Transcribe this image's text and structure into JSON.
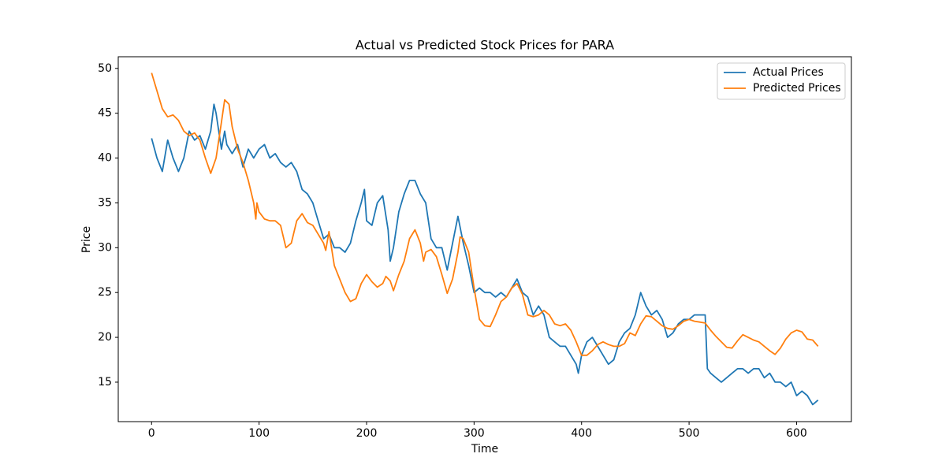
{
  "chart_data": {
    "type": "line",
    "title": "Actual vs Predicted Stock Prices for PARA",
    "x_label": "Time",
    "y_label": "Price",
    "xlim": [
      -31,
      651
    ],
    "ylim": [
      10.6,
      51.3
    ],
    "xticks": [
      0,
      100,
      200,
      300,
      400,
      500,
      600
    ],
    "yticks": [
      15,
      20,
      25,
      30,
      35,
      40,
      45,
      50
    ],
    "legend": "upper right",
    "series": [
      {
        "name": "Actual Prices",
        "color": "#1f77b4",
        "x": [
          0,
          5,
          10,
          15,
          20,
          25,
          30,
          35,
          40,
          45,
          50,
          55,
          58,
          60,
          65,
          68,
          70,
          75,
          80,
          85,
          90,
          95,
          100,
          105,
          110,
          115,
          120,
          125,
          130,
          135,
          140,
          145,
          150,
          155,
          160,
          165,
          170,
          175,
          180,
          185,
          190,
          195,
          198,
          200,
          205,
          210,
          215,
          220,
          222,
          225,
          230,
          235,
          240,
          245,
          250,
          255,
          260,
          265,
          270,
          275,
          280,
          285,
          290,
          295,
          300,
          305,
          310,
          315,
          320,
          325,
          330,
          335,
          340,
          345,
          350,
          355,
          360,
          365,
          370,
          375,
          380,
          385,
          390,
          395,
          397,
          400,
          405,
          410,
          415,
          420,
          425,
          430,
          435,
          440,
          445,
          450,
          455,
          460,
          465,
          470,
          475,
          480,
          485,
          490,
          495,
          500,
          505,
          510,
          515,
          517,
          520,
          525,
          530,
          535,
          540,
          545,
          550,
          555,
          560,
          565,
          570,
          575,
          580,
          585,
          590,
          595,
          600,
          605,
          610,
          615,
          620
        ],
        "values": [
          42.2,
          40,
          38.5,
          42,
          40,
          38.5,
          40,
          43,
          42,
          42.5,
          41,
          43,
          46,
          45,
          41,
          43,
          41.5,
          40.5,
          41.5,
          39,
          41,
          40,
          41,
          41.5,
          40,
          40.5,
          39.5,
          39,
          39.5,
          38.5,
          36.5,
          36,
          35,
          33,
          31,
          31.5,
          30,
          30,
          29.5,
          30.5,
          33,
          35,
          36.5,
          33,
          32.5,
          35,
          35.8,
          32,
          28.5,
          30,
          34,
          36,
          37.5,
          37.5,
          36,
          35,
          31,
          30,
          30,
          27.5,
          30.5,
          33.5,
          30.5,
          28,
          25,
          25.5,
          25,
          25,
          24.5,
          25,
          24.5,
          25.5,
          26.5,
          25,
          24.5,
          22.5,
          23.5,
          22.5,
          20,
          19.5,
          19,
          19,
          18,
          17,
          16,
          18,
          19.5,
          20,
          19,
          18,
          17,
          17.5,
          19.5,
          20.5,
          21,
          22.5,
          25,
          23.5,
          22.5,
          23,
          22,
          20,
          20.5,
          21.5,
          22,
          22,
          22.5,
          22.5,
          22.5,
          16.5,
          16,
          15.5,
          15,
          15.5,
          16,
          16.5,
          16.5,
          16,
          16.5,
          16.5,
          15.5,
          16,
          15,
          15,
          14.5,
          15,
          13.5,
          14,
          13.5,
          12.5,
          13
        ]
      },
      {
        "name": "Predicted Prices",
        "color": "#ff7f0e",
        "x": [
          0,
          5,
          10,
          15,
          20,
          25,
          30,
          35,
          40,
          45,
          50,
          55,
          60,
          65,
          68,
          72,
          75,
          80,
          85,
          90,
          95,
          97,
          98,
          100,
          105,
          110,
          115,
          120,
          125,
          130,
          135,
          140,
          145,
          150,
          155,
          160,
          162,
          165,
          168,
          170,
          175,
          180,
          185,
          190,
          195,
          200,
          205,
          210,
          215,
          218,
          222,
          225,
          230,
          235,
          240,
          245,
          250,
          253,
          255,
          260,
          265,
          270,
          275,
          280,
          285,
          287,
          290,
          295,
          300,
          305,
          310,
          315,
          320,
          325,
          330,
          335,
          340,
          345,
          350,
          355,
          360,
          365,
          370,
          375,
          380,
          385,
          390,
          395,
          400,
          405,
          410,
          415,
          420,
          425,
          430,
          435,
          440,
          445,
          450,
          455,
          460,
          465,
          470,
          475,
          480,
          485,
          490,
          495,
          500,
          505,
          510,
          515,
          520,
          525,
          530,
          535,
          540,
          545,
          550,
          555,
          560,
          565,
          570,
          575,
          580,
          585,
          590,
          595,
          600,
          605,
          610,
          615,
          620
        ],
        "values": [
          49.5,
          47.5,
          45.5,
          44.6,
          44.8,
          44.2,
          43,
          42.5,
          42.8,
          42,
          40,
          38.3,
          40,
          44,
          46.5,
          46,
          43.5,
          41,
          39.5,
          37.5,
          35,
          33.2,
          35,
          34,
          33.2,
          33,
          33,
          32.5,
          30,
          30.5,
          33,
          33.8,
          32.8,
          32.5,
          31.5,
          30.5,
          29.7,
          31.8,
          29.5,
          28,
          26.5,
          25,
          24,
          24.3,
          26,
          27,
          26.2,
          25.6,
          26,
          26.8,
          26.3,
          25.2,
          27,
          28.5,
          31,
          32,
          30.5,
          28.5,
          29.5,
          29.8,
          29,
          27,
          24.9,
          26.5,
          29.5,
          31.2,
          31,
          29.5,
          25.5,
          22,
          21.3,
          21.2,
          22.5,
          24,
          24.5,
          25.5,
          26,
          24.8,
          22.5,
          22.3,
          22.5,
          23,
          22.5,
          21.5,
          21.3,
          21.5,
          20.8,
          19.5,
          18,
          18,
          18.5,
          19.2,
          19.5,
          19.2,
          19,
          19,
          19.3,
          20.5,
          20.2,
          21.5,
          22.4,
          22.3,
          21.8,
          21.3,
          21,
          20.9,
          21.3,
          21.8,
          22,
          21.8,
          21.7,
          21.6,
          20.8,
          20.1,
          19.5,
          18.9,
          18.8,
          19.6,
          20.3,
          20,
          19.7,
          19.5,
          19,
          18.5,
          18.1,
          18.8,
          19.8,
          20.5,
          20.8,
          20.6,
          19.8,
          19.7,
          19
        ]
      }
    ]
  }
}
